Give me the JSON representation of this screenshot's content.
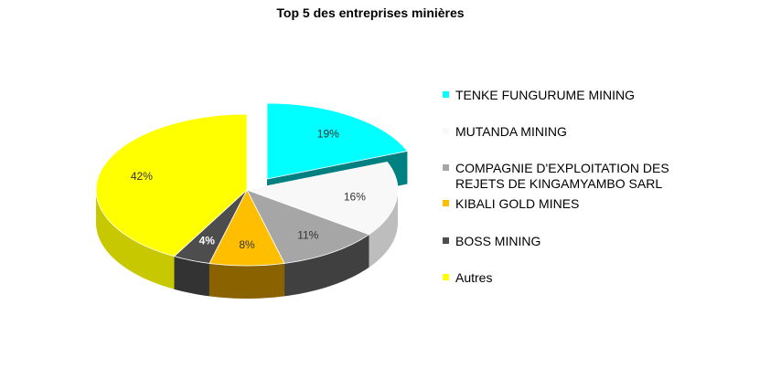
{
  "chart_data": {
    "type": "pie",
    "title": "Top 5 des entreprises minières",
    "slices": [
      {
        "name": "TENKE FUNGURUME MINING",
        "value": 19,
        "label": "19%",
        "color": "#00ffff",
        "side": "#008080",
        "label_color": "#333333"
      },
      {
        "name": "MUTANDA MINING",
        "value": 16,
        "label": "16%",
        "color": "#f8f8f8",
        "side": "#bdbdbd",
        "label_color": "#333333"
      },
      {
        "name": "COMPAGNIE D'EXPLOITATION DES REJETS DE KINGAMYAMBO SARL",
        "value": 11,
        "label": "11%",
        "color": "#a6a6a6",
        "side": "#404040",
        "label_color": "#333333"
      },
      {
        "name": "KIBALI GOLD MINES",
        "value": 8,
        "label": "8%",
        "color": "#ffbf00",
        "side": "#8a6200",
        "label_color": "#333333"
      },
      {
        "name": "BOSS MINING",
        "value": 4,
        "label": "4%",
        "color": "#4d4d4d",
        "side": "#333333",
        "label_color": "#ffffff"
      },
      {
        "name": "Autres",
        "value": 42,
        "label": "42%",
        "color": "#ffff00",
        "side": "#c8c800",
        "label_color": "#333333"
      }
    ],
    "legend_position": "right"
  }
}
